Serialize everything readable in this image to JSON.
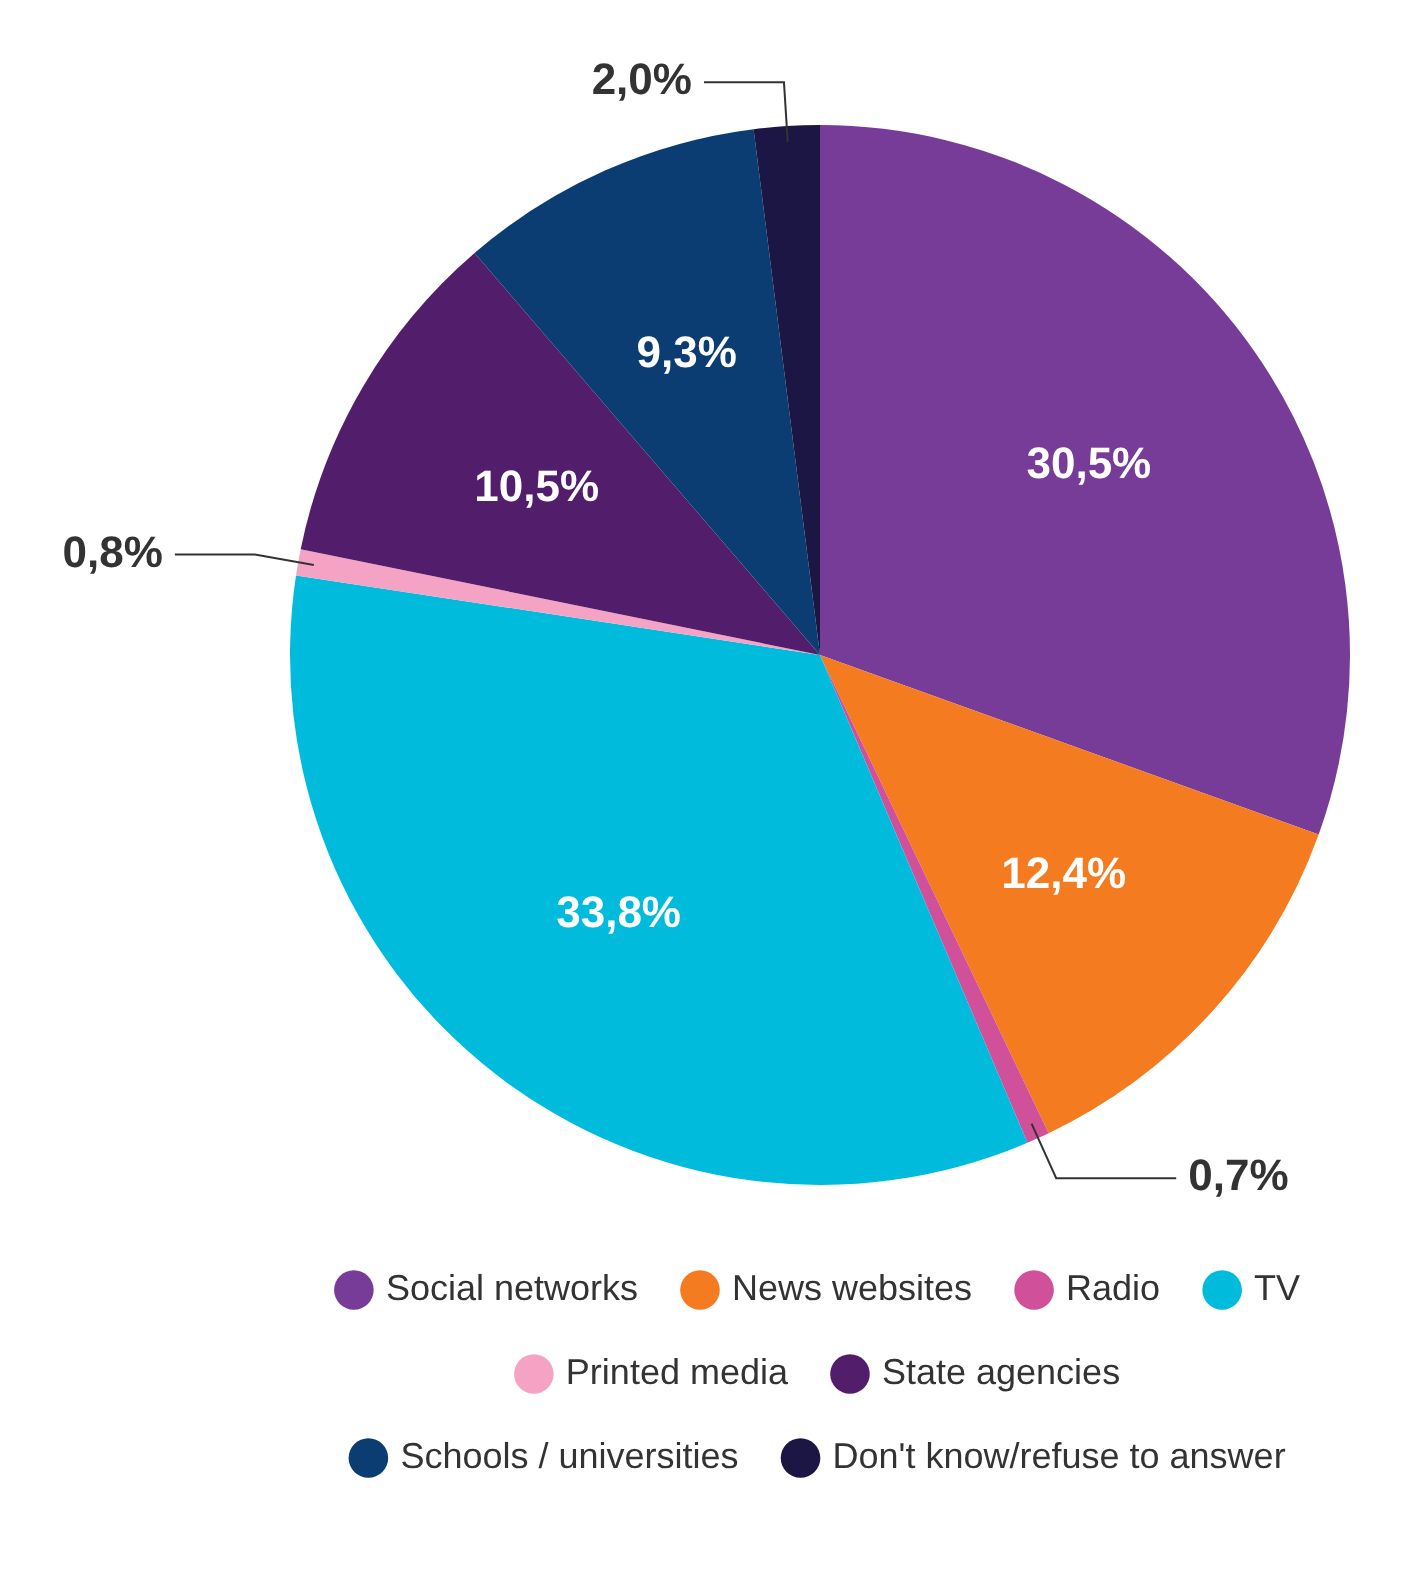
{
  "chart_data": {
    "type": "pie",
    "categories": [
      "Social networks",
      "News websites",
      "Radio",
      "TV",
      "Printed media",
      "State agencies",
      "Schools / universities",
      "Don't know/refuse to answer"
    ],
    "values": [
      30.5,
      12.4,
      0.7,
      33.8,
      0.8,
      10.5,
      9.3,
      2.0
    ],
    "colors": [
      "#763c97",
      "#f47b20",
      "#d0509a",
      "#00bbdc",
      "#f4a3c4",
      "#521d6b",
      "#0b3d73",
      "#1c1645"
    ],
    "value_labels": [
      "30,5%",
      "12,4%",
      "0,7%",
      "33,8%",
      "0,8%",
      "10,5%",
      "9,3%",
      "2,0%"
    ],
    "legend": "bottom"
  }
}
